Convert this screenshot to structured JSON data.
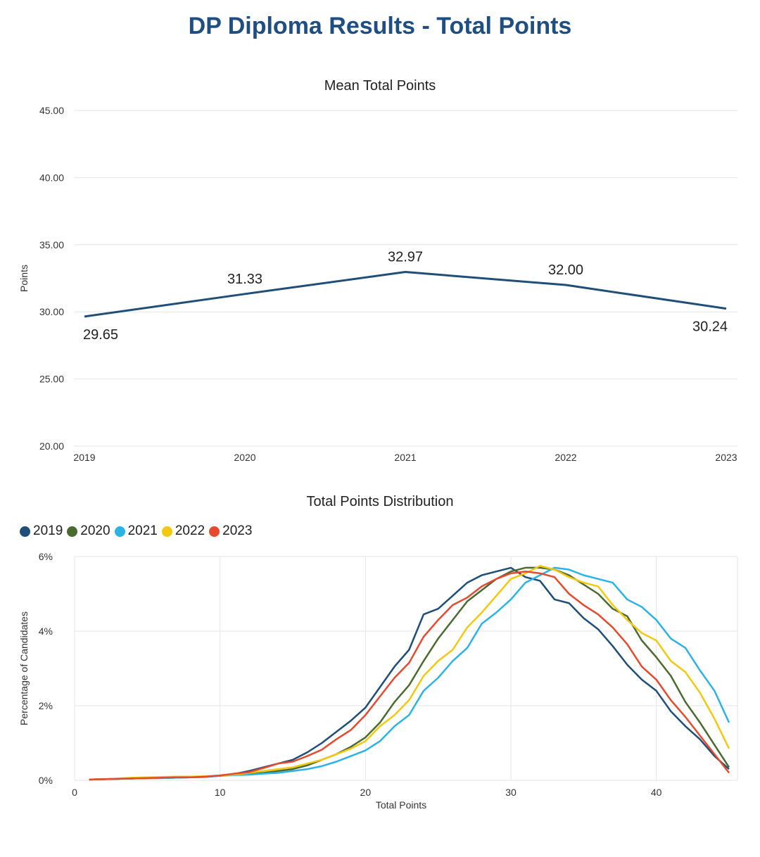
{
  "page": {
    "title": "DP Diploma Results - Total Points"
  },
  "chart_data": [
    {
      "type": "line",
      "title": "Mean Total Points",
      "xlabel": "",
      "ylabel": "Points",
      "categories": [
        "2019",
        "2020",
        "2021",
        "2022",
        "2023"
      ],
      "values": [
        29.65,
        31.33,
        32.97,
        32.0,
        30.24
      ],
      "data_labels": [
        "29.65",
        "31.33",
        "32.97",
        "32.00",
        "30.24"
      ],
      "yticks": [
        "20.00",
        "25.00",
        "30.00",
        "35.00",
        "40.00",
        "45.00"
      ],
      "ylim": [
        20,
        45
      ],
      "grid": true,
      "color": "#1f4e79"
    },
    {
      "type": "line",
      "title": "Total Points Distribution",
      "xlabel": "Total Points",
      "ylabel": "Percentage of Candidates",
      "xlim": [
        0,
        45
      ],
      "ylim": [
        0,
        6
      ],
      "xticks": [
        "0",
        "10",
        "20",
        "30",
        "40"
      ],
      "yticks": [
        "0%",
        "2%",
        "4%",
        "6%"
      ],
      "legend_position": "top-left",
      "grid": true,
      "x": [
        1,
        2,
        3,
        4,
        5,
        6,
        7,
        8,
        9,
        10,
        11,
        12,
        13,
        14,
        15,
        16,
        17,
        18,
        19,
        20,
        21,
        22,
        23,
        24,
        25,
        26,
        27,
        28,
        29,
        30,
        31,
        32,
        33,
        34,
        35,
        36,
        37,
        38,
        39,
        40,
        41,
        42,
        43,
        44,
        45
      ],
      "series": [
        {
          "name": "2019",
          "color": "#1f4e79",
          "values": [
            0.02,
            0.03,
            0.04,
            0.05,
            0.06,
            0.07,
            0.08,
            0.09,
            0.1,
            0.13,
            0.17,
            0.25,
            0.35,
            0.45,
            0.55,
            0.75,
            1.0,
            1.3,
            1.6,
            1.95,
            2.5,
            3.05,
            3.5,
            4.45,
            4.6,
            4.95,
            5.3,
            5.5,
            5.6,
            5.7,
            5.45,
            5.35,
            4.85,
            4.75,
            4.35,
            4.05,
            3.6,
            3.1,
            2.7,
            2.4,
            1.85,
            1.45,
            1.1,
            0.65,
            0.3
          ]
        },
        {
          "name": "2020",
          "color": "#4a6b2e",
          "values": [
            0.02,
            0.03,
            0.04,
            0.05,
            0.06,
            0.06,
            0.07,
            0.08,
            0.09,
            0.12,
            0.15,
            0.18,
            0.2,
            0.25,
            0.3,
            0.4,
            0.55,
            0.7,
            0.9,
            1.15,
            1.55,
            2.1,
            2.55,
            3.2,
            3.8,
            4.3,
            4.8,
            5.1,
            5.4,
            5.6,
            5.7,
            5.7,
            5.65,
            5.5,
            5.25,
            5.0,
            4.6,
            4.4,
            3.75,
            3.3,
            2.8,
            2.1,
            1.55,
            0.95,
            0.35
          ]
        },
        {
          "name": "2021",
          "color": "#2bb3e6",
          "values": [
            0.02,
            0.03,
            0.04,
            0.05,
            0.06,
            0.06,
            0.07,
            0.08,
            0.09,
            0.12,
            0.14,
            0.15,
            0.18,
            0.2,
            0.25,
            0.3,
            0.38,
            0.5,
            0.65,
            0.8,
            1.05,
            1.45,
            1.75,
            2.4,
            2.75,
            3.2,
            3.55,
            4.2,
            4.5,
            4.85,
            5.3,
            5.5,
            5.7,
            5.65,
            5.5,
            5.4,
            5.3,
            4.85,
            4.65,
            4.3,
            3.8,
            3.55,
            2.95,
            2.4,
            1.55
          ]
        },
        {
          "name": "2022",
          "color": "#f2c811",
          "values": [
            0.02,
            0.03,
            0.05,
            0.07,
            0.08,
            0.09,
            0.1,
            0.1,
            0.11,
            0.13,
            0.15,
            0.2,
            0.25,
            0.3,
            0.35,
            0.45,
            0.55,
            0.7,
            0.85,
            1.05,
            1.45,
            1.75,
            2.15,
            2.8,
            3.2,
            3.5,
            4.1,
            4.5,
            4.95,
            5.4,
            5.55,
            5.75,
            5.65,
            5.45,
            5.3,
            5.2,
            4.7,
            4.3,
            3.95,
            3.75,
            3.2,
            2.9,
            2.35,
            1.65,
            0.85
          ]
        },
        {
          "name": "2023",
          "color": "#e64a2e",
          "values": [
            0.02,
            0.03,
            0.04,
            0.05,
            0.06,
            0.07,
            0.08,
            0.08,
            0.1,
            0.13,
            0.18,
            0.22,
            0.33,
            0.45,
            0.5,
            0.65,
            0.82,
            1.1,
            1.35,
            1.75,
            2.25,
            2.75,
            3.15,
            3.85,
            4.3,
            4.7,
            4.9,
            5.2,
            5.4,
            5.55,
            5.6,
            5.55,
            5.45,
            5.0,
            4.7,
            4.45,
            4.1,
            3.65,
            3.05,
            2.7,
            2.15,
            1.7,
            1.2,
            0.7,
            0.2
          ]
        }
      ]
    }
  ]
}
